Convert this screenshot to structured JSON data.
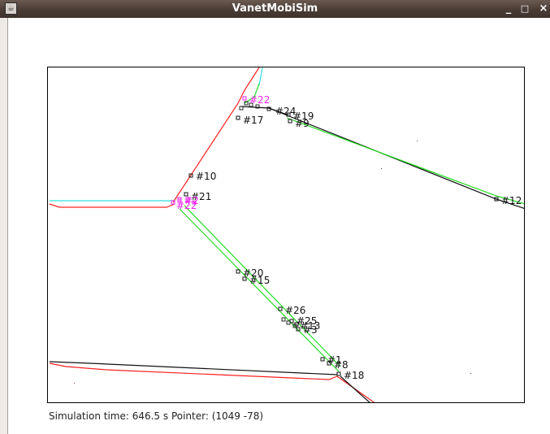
{
  "window": {
    "title": "VanetMobiSim",
    "minimize_glyph": "_",
    "maximize_glyph": "□",
    "close_glyph": "×",
    "app_icon": "java-app-icon"
  },
  "status": {
    "text": "Simulation time: 646.5 s Pointer: (1049 -78)"
  },
  "colors": {
    "road_red": "#ff2020",
    "road_green": "#22dd22",
    "road_cyan": "#33dddd",
    "road_black": "#111111",
    "vehicle_selected": "#ee22ee"
  },
  "vehicles": [
    {
      "id": "#22"
    },
    {
      "id": "#24"
    },
    {
      "id": "#19"
    },
    {
      "id": "#9"
    },
    {
      "id": "#17"
    },
    {
      "id": "#12"
    },
    {
      "id": "#10"
    },
    {
      "id": "#21"
    },
    {
      "id": "#2"
    },
    {
      "id": "#22b",
      "label": "#22"
    },
    {
      "id": "#20"
    },
    {
      "id": "#15"
    },
    {
      "id": "#26"
    },
    {
      "id": "#25"
    },
    {
      "id": "#13"
    },
    {
      "id": "#3"
    },
    {
      "id": "#1"
    },
    {
      "id": "#8"
    },
    {
      "id": "#18"
    }
  ]
}
